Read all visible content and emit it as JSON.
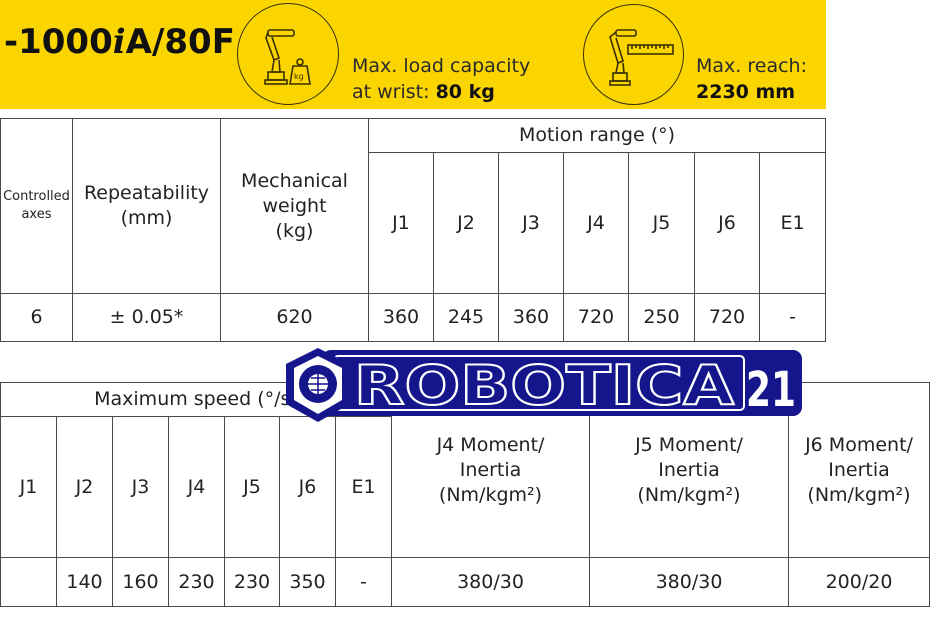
{
  "banner": {
    "model": "-1000",
    "model_i": "i",
    "model_suffix": "A/80F",
    "load_label": "Max. load capacity",
    "load_prefix": "at wrist: ",
    "load_value": "80 kg",
    "reach_label": "Max. reach:",
    "reach_value": "2230 mm",
    "load_icon": "robot-arm-with-kg-weight-icon",
    "reach_icon": "robot-arm-with-ruler-icon",
    "color": "#fbd500"
  },
  "upper_table": {
    "headers": {
      "controlled_axes": "Controlled\naxes",
      "repeatability": "Repeatability\n(mm)",
      "weight": "Mechanical\nweight\n(kg)",
      "motion_range": "Motion range (°)",
      "joints": [
        "J1",
        "J2",
        "J3",
        "J4",
        "J5",
        "J6",
        "E1"
      ]
    },
    "row": {
      "controlled_axes": "6",
      "repeatability": "± 0.05*",
      "weight": "620",
      "motion": [
        "360",
        "245",
        "360",
        "720",
        "250",
        "720",
        "-"
      ]
    }
  },
  "lower_table": {
    "headers": {
      "max_speed": "Maximum speed (°/s)",
      "joints": [
        "J1",
        "J2",
        "J3",
        "J4",
        "J5",
        "J6",
        "E1"
      ],
      "j4_moment": "J4 Moment/\nInertia\n(Nm/kgm²)",
      "j5_moment": "J5 Moment/\nInertia\n(Nm/kgm²)",
      "j6_moment": "J6 Moment/\nInertia\n(Nm/kgm²)"
    },
    "row": {
      "speed": [
        "",
        "140",
        "160",
        "230",
        "230",
        "350",
        "-"
      ],
      "j4": "380/30",
      "j5": "380/30",
      "j6": "200/20"
    }
  },
  "watermark": {
    "text": "ROBOTICA",
    "number": "21",
    "color": "#16168c"
  }
}
